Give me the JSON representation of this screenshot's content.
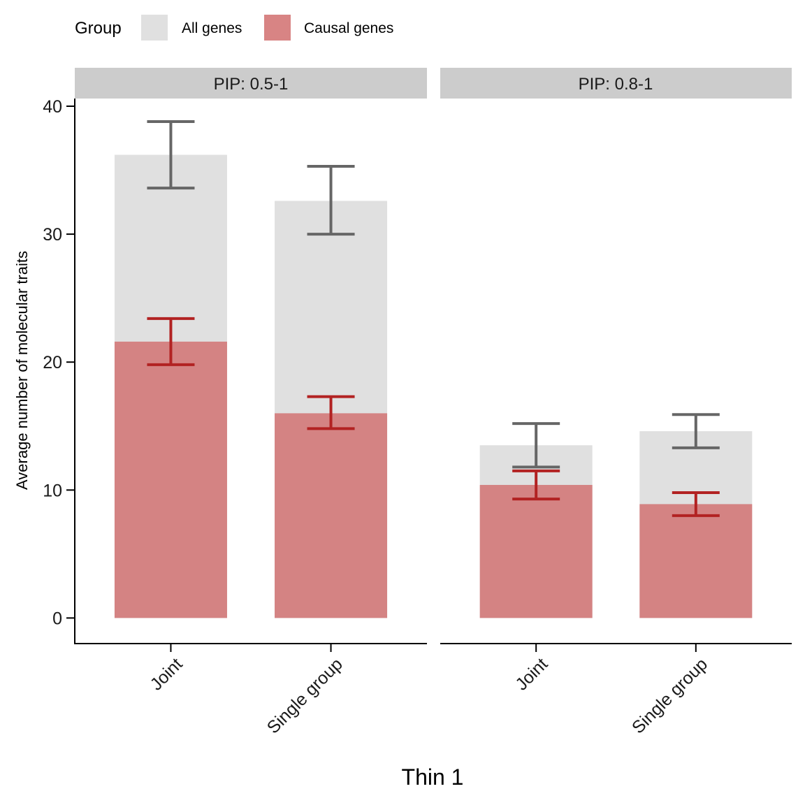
{
  "chart_data": {
    "type": "bar",
    "xlabel": "Thin 1",
    "ylabel": "Average number of molecular traits",
    "ylim": [
      -2,
      40.6
    ],
    "yticks": [
      0,
      10,
      20,
      30,
      40
    ],
    "grid": false,
    "legend": {
      "title": "Group",
      "position": "top-left",
      "items": [
        {
          "label": "All genes",
          "color": "#e0e0e0"
        },
        {
          "label": "Causal genes",
          "color": "#d88484"
        }
      ]
    },
    "colors": {
      "all_bar": "#e0e0e0",
      "causal_bar": "#d48383",
      "all_error": "#666666",
      "causal_error": "#b22222",
      "strip_bg": "#cccccc"
    },
    "categories": [
      "Joint",
      "Single group"
    ],
    "panels": [
      {
        "strip_label": "PIP: 0.5-1",
        "series": [
          {
            "name": "All genes",
            "values": [
              36.2,
              32.6
            ],
            "err_low": [
              33.6,
              30.0
            ],
            "err_high": [
              38.8,
              35.3
            ]
          },
          {
            "name": "Causal genes",
            "values": [
              21.6,
              16.0
            ],
            "err_low": [
              19.8,
              14.8
            ],
            "err_high": [
              23.4,
              17.3
            ]
          }
        ]
      },
      {
        "strip_label": "PIP: 0.8-1",
        "series": [
          {
            "name": "All genes",
            "values": [
              13.5,
              14.6
            ],
            "err_low": [
              11.8,
              13.3
            ],
            "err_high": [
              15.2,
              15.9
            ]
          },
          {
            "name": "Causal genes",
            "values": [
              10.4,
              8.9
            ],
            "err_low": [
              9.3,
              8.0
            ],
            "err_high": [
              11.5,
              9.8
            ]
          }
        ]
      }
    ]
  }
}
